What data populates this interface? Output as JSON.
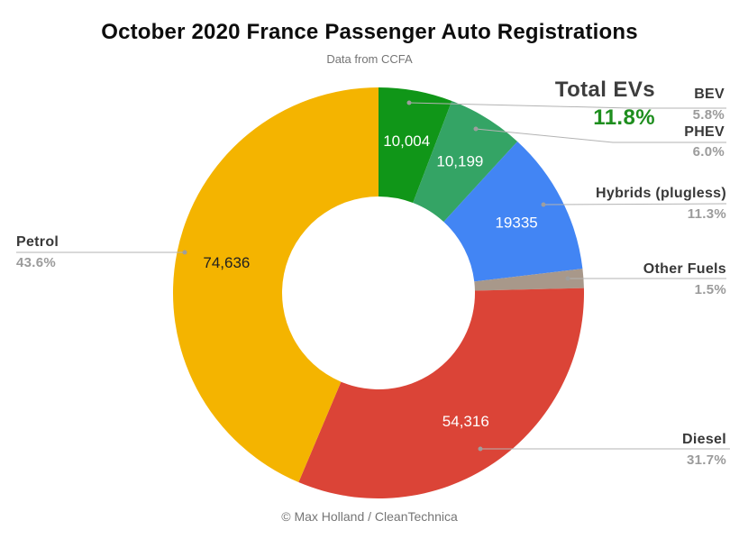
{
  "header": {
    "title": "October 2020 France Passenger Auto Registrations",
    "subtitle": "Data from CCFA"
  },
  "footer": {
    "credit": "© Max Holland / CleanTechnica"
  },
  "total_evs": {
    "label": "Total EVs",
    "value": "11.8%",
    "color": "#1E8E1E"
  },
  "chart_data": {
    "type": "pie",
    "donut": true,
    "title": "October 2020 France Passenger Auto Registrations",
    "subtitle": "Data from CCFA",
    "start_angle_deg": 0,
    "direction": "clockwise",
    "legend_position": "labeled-callouts",
    "slices": [
      {
        "id": "bev",
        "name": "BEV",
        "value": 10004,
        "value_label": "10,004",
        "pct": 5.8,
        "pct_label": "5.8%",
        "color": "#109618",
        "label_color": "#ffffff"
      },
      {
        "id": "phev",
        "name": "PHEV",
        "value": 10199,
        "value_label": "10,199",
        "pct": 6.0,
        "pct_label": "6.0%",
        "color": "#34A465",
        "label_color": "#ffffff"
      },
      {
        "id": "hybrids",
        "name": "Hybrids (plugless)",
        "value": 19335,
        "value_label": "19335",
        "pct": 11.3,
        "pct_label": "11.3%",
        "color": "#4285F4",
        "label_color": "#ffffff"
      },
      {
        "id": "other",
        "name": "Other Fuels",
        "pct": 1.5,
        "pct_label": "1.5%",
        "color": "#A8988A"
      },
      {
        "id": "diesel",
        "name": "Diesel",
        "value": 54316,
        "value_label": "54,316",
        "pct": 31.7,
        "pct_label": "31.7%",
        "color": "#DB4437",
        "label_color": "#ffffff"
      },
      {
        "id": "petrol",
        "name": "Petrol",
        "value": 74636,
        "value_label": "74,636",
        "pct": 43.6,
        "pct_label": "43.6%",
        "color": "#F4B400",
        "label_color": "#212121"
      }
    ]
  }
}
